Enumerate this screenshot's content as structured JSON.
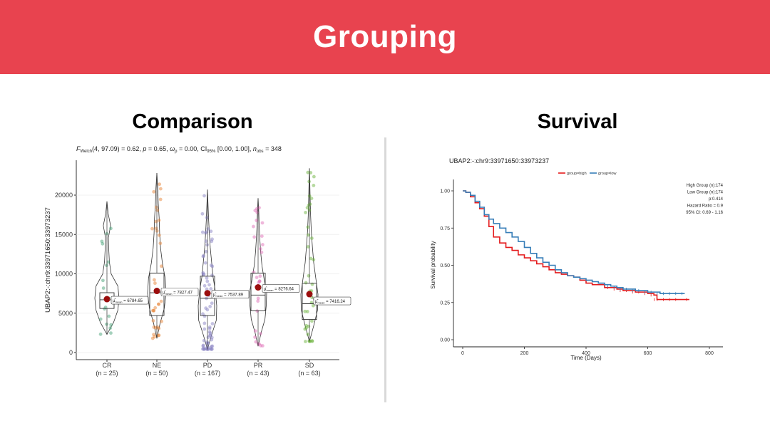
{
  "banner": {
    "title": "Grouping"
  },
  "sections": {
    "left_title": "Comparison",
    "right_title": "Survival"
  },
  "chart_data": [
    {
      "type": "violin",
      "subtitle": {
        "f_label": "F",
        "f_sub": "Welch",
        "f_rest": "(4, 97.09) = 0.62, ",
        "p_label": "p",
        "p_rest": " = 0.65, ",
        "omega_label": "ω",
        "omega_sub": "p",
        "omega_rest": " = 0.00, CI",
        "ci_sub": "95%",
        "ci_rest": " [0.00, 1.00], ",
        "n_label": "n",
        "n_sub": "obs",
        "n_rest": " = 348"
      },
      "ylabel": "UBAP2:-:chr9:33971650:33973237",
      "ylim": [
        0,
        24000
      ],
      "yticks": [
        0,
        5000,
        10000,
        15000,
        20000
      ],
      "mean_symbol": "μ̂",
      "mean_sub": "mean",
      "groups": [
        {
          "name": "CR",
          "n_label": "(n = 25)",
          "color": "#4aa37a",
          "mean": 6784.65,
          "mean_label": "6784.65",
          "q1": 5600,
          "median": 6700,
          "q3": 7600,
          "min": 2300,
          "max": 19200
        },
        {
          "name": "NE",
          "n_label": "(n = 50)",
          "color": "#e8853a",
          "mean": 7827.47,
          "mean_label": "7827.47",
          "q1": 4700,
          "median": 7600,
          "q3": 10100,
          "min": 1800,
          "max": 22800
        },
        {
          "name": "PD",
          "n_label": "(n = 167)",
          "color": "#8a84c4",
          "mean": 7537.89,
          "mean_label": "7537.89",
          "q1": 4700,
          "median": 6900,
          "q3": 9700,
          "min": 400,
          "max": 20700
        },
        {
          "name": "PR",
          "n_label": "(n = 43)",
          "color": "#e070b8",
          "mean": 8276.64,
          "mean_label": "8276.64",
          "q1": 5300,
          "median": 7300,
          "q3": 10100,
          "min": 800,
          "max": 19600
        },
        {
          "name": "SD",
          "n_label": "(n = 63)",
          "color": "#6db33f",
          "mean": 7416.24,
          "mean_label": "7416.24",
          "q1": 4200,
          "median": 6200,
          "q3": 8800,
          "min": 1400,
          "max": 23400
        }
      ],
      "mean_color": "#9b0d0d"
    },
    {
      "type": "line",
      "title": "UBAP2:-:chr9:33971650:33973237",
      "xlabel": "Time (Days)",
      "ylabel": "Survival probability",
      "xlim": [
        0,
        850
      ],
      "ylim": [
        0,
        1
      ],
      "xticks": [
        0,
        200,
        400,
        600,
        800
      ],
      "yticks": [
        "0.00",
        "0.25",
        "0.50",
        "0.75",
        "1.00"
      ],
      "legend_position": "top",
      "stats": [
        "High Group (n):174",
        "Low Group (n):174",
        "p:0.414",
        "Hazard Ratio = 0.9",
        "95% CI: 0.69 - 1.16"
      ],
      "series": [
        {
          "name": "group=high",
          "color": "#e41a1c",
          "x": [
            0,
            10,
            25,
            40,
            55,
            70,
            85,
            100,
            120,
            140,
            160,
            180,
            200,
            220,
            240,
            260,
            280,
            300,
            320,
            340,
            360,
            380,
            400,
            420,
            440,
            460,
            480,
            500,
            520,
            540,
            560,
            580,
            600,
            620,
            630,
            640,
            660,
            680,
            700,
            735
          ],
          "y": [
            1.0,
            0.99,
            0.96,
            0.92,
            0.88,
            0.83,
            0.76,
            0.69,
            0.65,
            0.62,
            0.6,
            0.57,
            0.55,
            0.53,
            0.51,
            0.49,
            0.47,
            0.45,
            0.44,
            0.43,
            0.42,
            0.4,
            0.38,
            0.37,
            0.37,
            0.35,
            0.35,
            0.34,
            0.33,
            0.33,
            0.32,
            0.32,
            0.31,
            0.3,
            0.27,
            0.27,
            0.27,
            0.27,
            0.27,
            0.27
          ]
        },
        {
          "name": "group=low",
          "color": "#377eb8",
          "x": [
            0,
            10,
            25,
            40,
            55,
            70,
            85,
            100,
            120,
            140,
            160,
            180,
            200,
            220,
            240,
            260,
            280,
            300,
            320,
            340,
            360,
            380,
            400,
            420,
            440,
            460,
            480,
            500,
            520,
            540,
            560,
            580,
            600,
            620,
            640,
            660,
            680,
            700,
            720
          ],
          "y": [
            1.0,
            0.99,
            0.97,
            0.93,
            0.89,
            0.84,
            0.81,
            0.78,
            0.75,
            0.72,
            0.69,
            0.66,
            0.62,
            0.58,
            0.55,
            0.52,
            0.5,
            0.47,
            0.45,
            0.43,
            0.42,
            0.41,
            0.4,
            0.39,
            0.38,
            0.37,
            0.36,
            0.35,
            0.34,
            0.34,
            0.33,
            0.33,
            0.32,
            0.32,
            0.31,
            0.31,
            0.31,
            0.31,
            0.31
          ]
        }
      ]
    }
  ]
}
